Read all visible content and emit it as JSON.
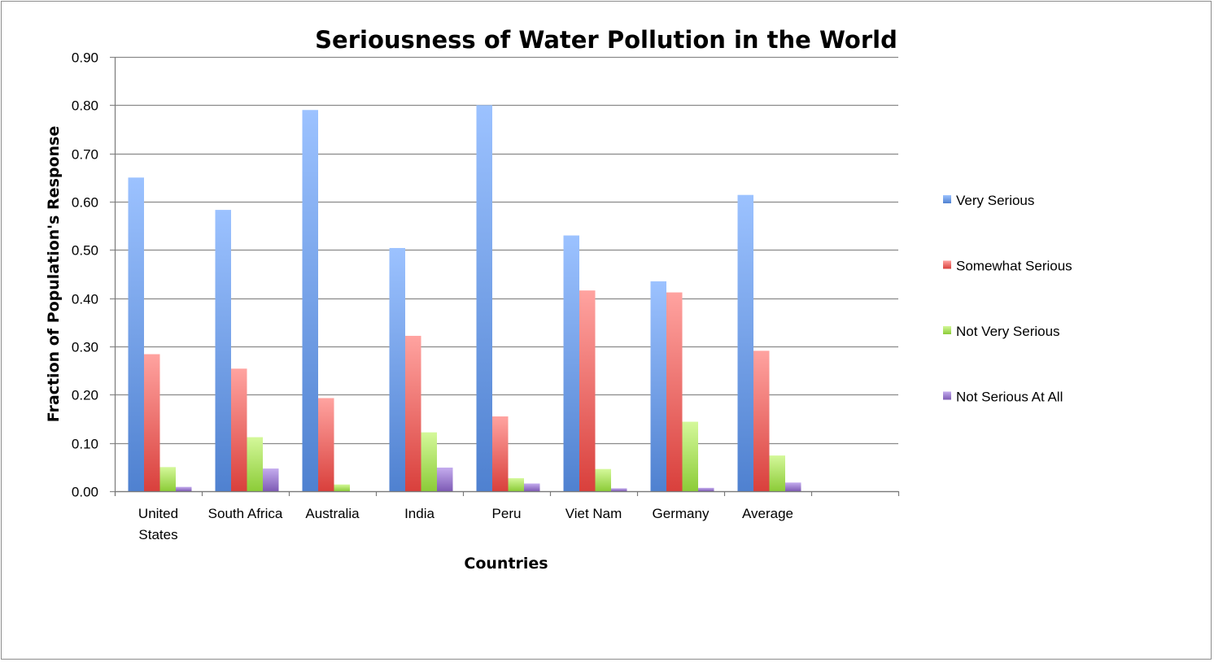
{
  "chart_data": {
    "type": "bar",
    "title": "Seriousness of Water Pollution in the World",
    "xlabel": "Countries",
    "ylabel": "Fraction of Population's Response",
    "ylim": [
      0,
      0.9
    ],
    "ytick_step": 0.1,
    "yticks": [
      "0.00",
      "0.10",
      "0.20",
      "0.30",
      "0.40",
      "0.50",
      "0.60",
      "0.70",
      "0.80",
      "0.90"
    ],
    "grid": true,
    "legend_position": "right",
    "categories": [
      [
        "United",
        "States"
      ],
      [
        "South Africa"
      ],
      [
        "Australia"
      ],
      [
        "India"
      ],
      [
        "Peru"
      ],
      [
        "Viet Nam"
      ],
      [
        "Germany"
      ],
      [
        "Average"
      ],
      [
        ""
      ]
    ],
    "series": [
      {
        "name": "Very Serious",
        "color": "#4f81d0",
        "color_light": "#9cc2ff",
        "values": [
          0.65,
          0.583,
          0.79,
          0.504,
          0.8,
          0.53,
          0.435,
          0.614,
          null
        ]
      },
      {
        "name": "Somewhat Serious",
        "color": "#d9403c",
        "color_light": "#ffa3a0",
        "values": [
          0.284,
          0.254,
          0.193,
          0.322,
          0.155,
          0.416,
          0.412,
          0.291,
          null
        ]
      },
      {
        "name": "Not Very Serious",
        "color": "#8ccc38",
        "color_light": "#d4f89a",
        "values": [
          0.05,
          0.112,
          0.014,
          0.122,
          0.027,
          0.046,
          0.144,
          0.074,
          null
        ]
      },
      {
        "name": "Not Serious At All",
        "color": "#7e5bb5",
        "color_light": "#c4acee",
        "values": [
          0.009,
          0.047,
          0.0,
          0.049,
          0.016,
          0.006,
          0.007,
          0.018,
          null
        ]
      }
    ]
  }
}
